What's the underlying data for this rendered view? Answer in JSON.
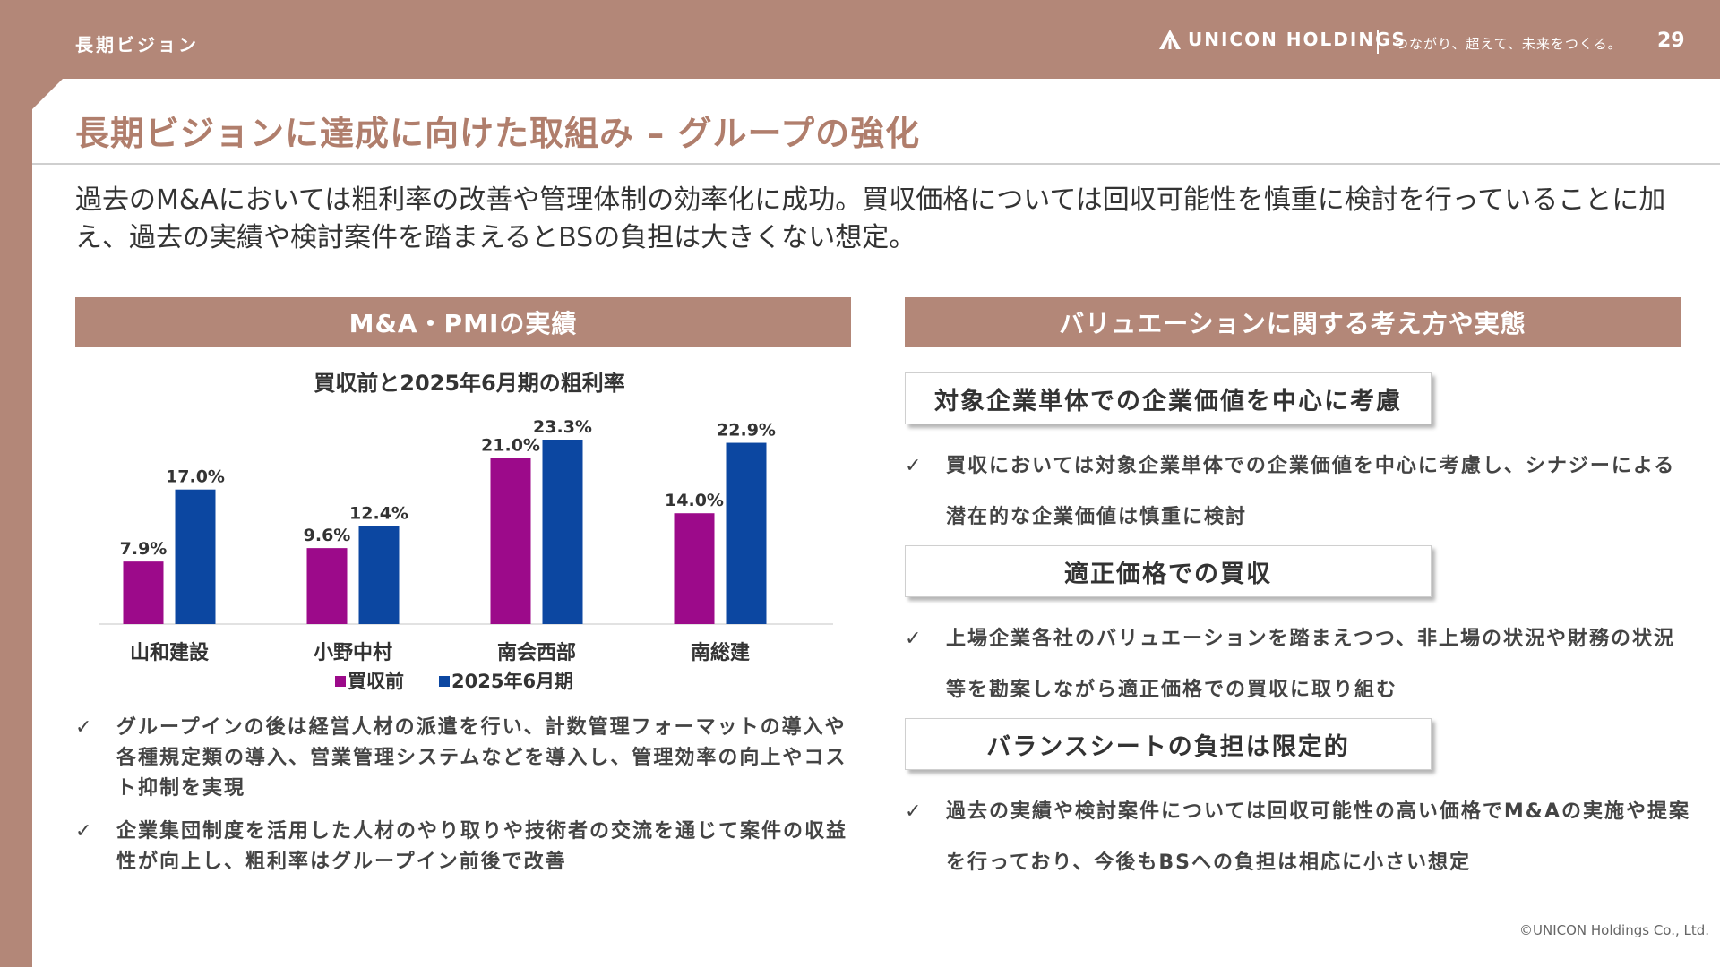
{
  "header": {
    "section_label": "長期ビジョン",
    "logo_text": "UNICON HOLDINGS",
    "logo_icon": "unicon-mountain-icon",
    "tagline": "つながり、超えて、未来をつくる。",
    "page_number": "29"
  },
  "title": "長期ビジョンに達成に向けた取組み – グループの強化",
  "lead": "過去のM&Aにおいては粗利率の改善や管理体制の効率化に成功。買収価格については回収可能性を慎重に検討を行っていることに加え、過去の実績や検討案件を踏まえるとBSの負担は大きくない想定。",
  "left": {
    "header": "M&A・PMIの実績",
    "bullets": [
      "グループインの後は経営人材の派遣を行い、計数管理フォーマットの導入や各種規定類の導入、営業管理システムなどを導入し、管理効率の向上やコスト抑制を実現",
      "企業集団制度を活用した人材のやり取りや技術者の交流を通じて案件の収益性が向上し、粗利率はグループイン前後で改善"
    ]
  },
  "right": {
    "header": "バリュエーションに関する考え方や実態",
    "items": [
      {
        "title": "対象企業単体での企業価値を中心に考慮",
        "text": "買収においては対象企業単体での企業価値を中心に考慮し、シナジーによる潜在的な企業価値は慎重に検討"
      },
      {
        "title": "適正価格での買収",
        "text": "上場企業各社のバリュエーションを踏まえつつ、非上場の状況や財務の状況等を勘案しながら適正価格での買収に取り組む"
      },
      {
        "title": "バランスシートの負担は限定的",
        "text": "過去の実績や検討案件については回収可能性の高い価格でM&Aの実施や提案を行っており、今後もBSへの負担は相応に小さい想定"
      }
    ]
  },
  "check_glyph": "✓",
  "copyright": "©UNICON Holdings Co., Ltd.",
  "colors": {
    "brand": "#b38778",
    "title": "#b07e6c",
    "series_before": "#9c0a8a",
    "series_after": "#0c47a1"
  },
  "chart_data": {
    "type": "bar",
    "title": "買収前と2025年6月期の粗利率",
    "categories": [
      "山和建設",
      "小野中村",
      "南会西部",
      "南総建"
    ],
    "series": [
      {
        "name": "買収前",
        "values": [
          7.9,
          9.6,
          21.0,
          14.0
        ],
        "labels": [
          "7.9%",
          "9.6%",
          "21.0%",
          "14.0%"
        ],
        "color": "#9c0a8a"
      },
      {
        "name": "2025年6月期",
        "values": [
          17.0,
          12.4,
          23.3,
          22.9
        ],
        "labels": [
          "17.0%",
          "12.4%",
          "23.3%",
          "22.9%"
        ],
        "color": "#0c47a1"
      }
    ],
    "ylim": [
      0,
      23.3
    ],
    "grid": false,
    "legend": "bottom"
  }
}
